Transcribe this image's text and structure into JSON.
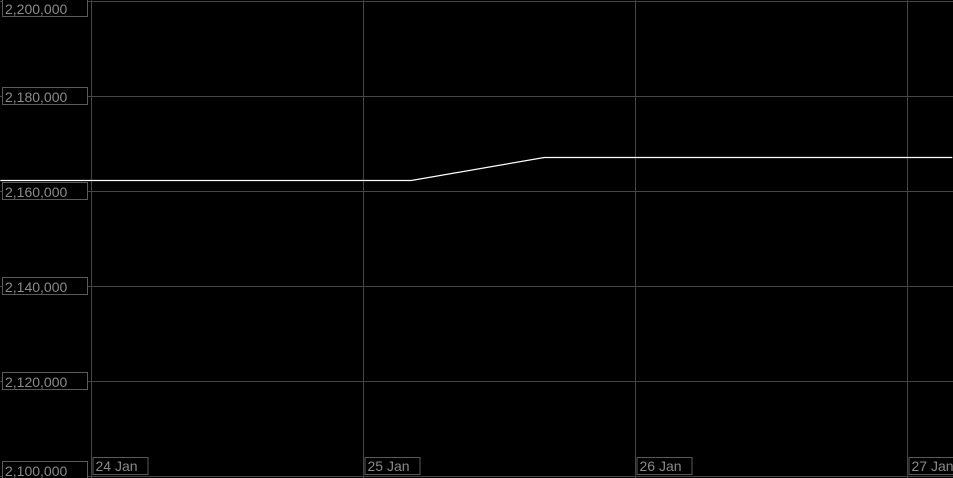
{
  "chart_data": {
    "type": "line",
    "title": "",
    "xlabel": "",
    "ylabel": "",
    "ylim": [
      2100000,
      2200000
    ],
    "yticks": [
      2100000,
      2120000,
      2140000,
      2160000,
      2180000,
      2200000
    ],
    "ytick_labels": [
      "2,100,000",
      "2,120,000",
      "2,140,000",
      "2,160,000",
      "2,180,000",
      "2,200,000"
    ],
    "xticks": [
      "24 Jan",
      "25 Jan",
      "26 Jan",
      "27 Jan"
    ],
    "grid": true,
    "colors": {
      "background": "#000000",
      "grid": "#444444",
      "line": "#ffffff",
      "label": "#8a8a8a"
    },
    "series": [
      {
        "points": [
          {
            "x": "23 Jan 16:00",
            "y": 2162300
          },
          {
            "x": "25 Jan 04:15",
            "y": 2162300
          },
          {
            "x": "25 Jan 16:00",
            "y": 2167200
          },
          {
            "x": "27 Jan 04:00",
            "y": 2167200
          }
        ]
      }
    ]
  }
}
